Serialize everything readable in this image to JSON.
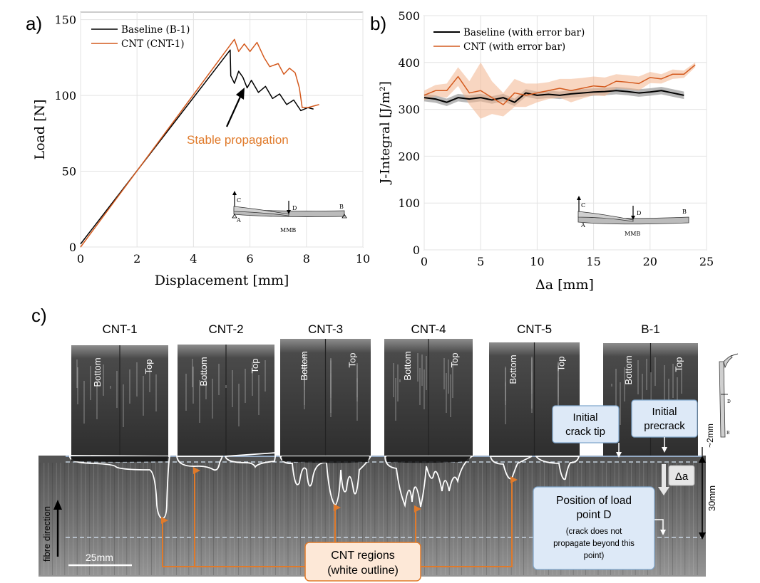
{
  "chart_data": [
    {
      "type": "line",
      "panel_label": "a)",
      "title": "",
      "xlabel": "Displacement [mm]",
      "ylabel": "Load [N]",
      "xlim": [
        0,
        10
      ],
      "ylim": [
        0,
        155
      ],
      "xticks": [
        0,
        2,
        4,
        6,
        8,
        10
      ],
      "yticks": [
        0,
        50,
        100,
        150
      ],
      "grid": true,
      "legend": "top-left",
      "annotation": "Stable propagation",
      "inset": {
        "labels": [
          "C",
          "D",
          "B",
          "A",
          "MMB"
        ]
      },
      "series": [
        {
          "name": "Baseline (B-1)",
          "color": "#000000",
          "x": [
            0,
            5.3,
            5.32,
            5.45,
            5.6,
            5.75,
            5.9,
            6.05,
            6.3,
            6.55,
            6.8,
            7.05,
            7.3,
            7.55,
            7.8,
            8.05,
            8.25
          ],
          "y": [
            2,
            130,
            113,
            108,
            116,
            112,
            105,
            110,
            102,
            106,
            98,
            101,
            94,
            97,
            90,
            92,
            91
          ]
        },
        {
          "name": "CNT (CNT-1)",
          "color": "#d45a1e",
          "x": [
            0,
            5.45,
            5.6,
            5.8,
            6.0,
            6.25,
            6.5,
            6.7,
            7.0,
            7.2,
            7.4,
            7.6,
            7.75,
            7.85,
            8.05,
            8.45
          ],
          "y": [
            0,
            137,
            129,
            134,
            129,
            135,
            125,
            119,
            121,
            114,
            118,
            115,
            105,
            92,
            92,
            94
          ]
        }
      ]
    },
    {
      "type": "line",
      "panel_label": "b)",
      "title": "",
      "xlabel": "Δa [mm]",
      "ylabel": "J-Integral [J/m²]",
      "xlim": [
        0,
        25
      ],
      "ylim": [
        0,
        500
      ],
      "xticks": [
        0,
        5,
        10,
        15,
        20,
        25
      ],
      "yticks": [
        0,
        100,
        200,
        300,
        400,
        500
      ],
      "grid": true,
      "legend": "top-left",
      "inset": {
        "labels": [
          "C",
          "D",
          "B",
          "A",
          "MMB"
        ]
      },
      "series": [
        {
          "name": "Baseline (with error bar)",
          "color": "#000000",
          "x": [
            0,
            1,
            2,
            3,
            4,
            5,
            6,
            7,
            8,
            9,
            10,
            11,
            12,
            13,
            14,
            15,
            16,
            17,
            18,
            19,
            20,
            21,
            22,
            23
          ],
          "y": [
            325,
            322,
            315,
            325,
            322,
            325,
            320,
            325,
            315,
            335,
            330,
            332,
            330,
            333,
            335,
            337,
            338,
            340,
            338,
            335,
            337,
            340,
            335,
            330
          ],
          "err": [
            8,
            8,
            8,
            8,
            8,
            8,
            8,
            8,
            8,
            8,
            8,
            8,
            8,
            8,
            8,
            8,
            8,
            8,
            8,
            8,
            8,
            8,
            8,
            8
          ]
        },
        {
          "name": "CNT (with error bar)",
          "color": "#d45a1e",
          "x": [
            0,
            1,
            2,
            3,
            4,
            5,
            6,
            7,
            8,
            9,
            10,
            11,
            12,
            13,
            14,
            15,
            16,
            17,
            18,
            19,
            20,
            21,
            22,
            23,
            24
          ],
          "y": [
            330,
            340,
            340,
            370,
            335,
            340,
            325,
            310,
            335,
            330,
            335,
            340,
            345,
            340,
            345,
            350,
            348,
            360,
            358,
            355,
            368,
            365,
            375,
            375,
            395
          ],
          "err": [
            10,
            12,
            15,
            20,
            25,
            60,
            35,
            25,
            30,
            25,
            20,
            18,
            20,
            25,
            22,
            20,
            20,
            15,
            15,
            15,
            12,
            10,
            10,
            8,
            5
          ]
        }
      ]
    }
  ],
  "panel_c": {
    "label": "c)",
    "specimens": [
      {
        "name": "CNT-1",
        "bottom": "Bottom",
        "top": "Top"
      },
      {
        "name": "CNT-2",
        "bottom": "Bottom",
        "top": "Top"
      },
      {
        "name": "CNT-3",
        "bottom": "Bottom",
        "top": "Top"
      },
      {
        "name": "CNT-4",
        "bottom": "Bottom",
        "top": "Top"
      },
      {
        "name": "CNT-5",
        "bottom": "Bottom",
        "top": "Top"
      },
      {
        "name": "B-1",
        "bottom": "Bottom",
        "top": "Top"
      }
    ],
    "callouts": {
      "initial_crack_tip": [
        "Initial",
        "crack tip"
      ],
      "initial_precrack": [
        "Initial",
        "precrack"
      ],
      "delta_a": "Δa",
      "load_point_title": [
        "Position of load",
        "point D"
      ],
      "load_point_note": [
        "(crack does not",
        "propagate beyond this",
        "point)"
      ],
      "cnt_regions": [
        "CNT regions",
        "(white outline)"
      ],
      "dim_2mm": "~2mm",
      "dim_30mm": "30mm",
      "fibre_direction": "fibre direction",
      "scale_bar": "25mm"
    },
    "colors": {
      "callout_fill": "#dde9f7",
      "callout_stroke": "#7fa6cc",
      "orange": "#e07a2a",
      "cnt_fill": "#fde8d7"
    }
  }
}
